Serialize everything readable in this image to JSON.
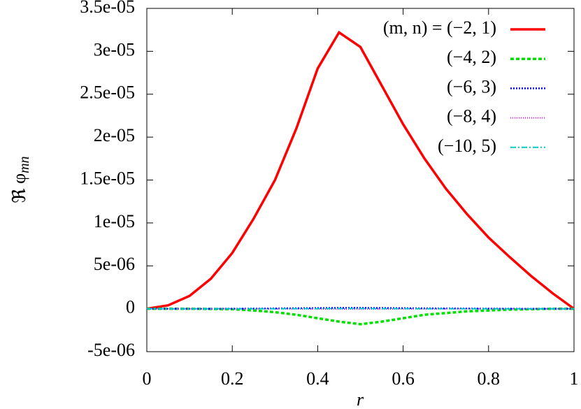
{
  "chart_data": {
    "type": "line",
    "x_label": "r",
    "y_label": {
      "text": "ℜ φ",
      "subscript": "mn"
    },
    "x": [
      0,
      0.05,
      0.1,
      0.15,
      0.2,
      0.25,
      0.3,
      0.35,
      0.4,
      0.45,
      0.5,
      0.55,
      0.6,
      0.65,
      0.7,
      0.75,
      0.8,
      0.85,
      0.9,
      0.95,
      1
    ],
    "series": [
      {
        "name": "(m, n) = (−2, 1)",
        "color": "#ff0000",
        "dash": "none",
        "width": 3.5,
        "values": [
          0,
          4e-07,
          1.5e-06,
          3.5e-06,
          6.5e-06,
          1.05e-05,
          1.5e-05,
          2.1e-05,
          2.8e-05,
          3.22e-05,
          3.05e-05,
          2.6e-05,
          2.15e-05,
          1.75e-05,
          1.4e-05,
          1.1e-05,
          8.3e-06,
          6e-06,
          3.8e-06,
          1.8e-06,
          0
        ]
      },
      {
        "name": "(−4, 2)",
        "color": "#00e000",
        "dash": "5 3",
        "width": 3.5,
        "values": [
          0,
          0,
          0,
          -2e-08,
          -5e-08,
          -2e-07,
          -4e-07,
          -7e-07,
          -1.1e-06,
          -1.5e-06,
          -1.8e-06,
          -1.5e-06,
          -1.1e-06,
          -7e-07,
          -5e-07,
          -3e-07,
          -2e-07,
          -1e-07,
          -5e-08,
          0,
          0
        ]
      },
      {
        "name": "(−6, 3)",
        "color": "#0000ff",
        "dash": "2 2",
        "width": 2.5,
        "values": [
          0,
          0,
          0,
          0,
          1e-08,
          2e-08,
          4e-08,
          6e-08,
          8e-08,
          1e-07,
          1e-07,
          9e-08,
          7e-08,
          5e-08,
          4e-08,
          3e-08,
          2e-08,
          1e-08,
          0,
          0,
          0
        ]
      },
      {
        "name": "(−8, 4)",
        "color": "#ff00ff",
        "dash": "1 2",
        "width": 2,
        "values": [
          0,
          0,
          0,
          0,
          0,
          0,
          -1e-08,
          -2e-08,
          -3e-08,
          -4e-08,
          -4e-08,
          -3e-08,
          -2e-08,
          -2e-08,
          -1e-08,
          0,
          0,
          0,
          0,
          0,
          0
        ]
      },
      {
        "name": "(−10, 5)",
        "color": "#00cccc",
        "dash": "8 3 2 3",
        "width": 2,
        "values": [
          0,
          0,
          0,
          0,
          0,
          0,
          0,
          1e-08,
          1e-08,
          2e-08,
          2e-08,
          1e-08,
          1e-08,
          0,
          0,
          0,
          0,
          0,
          0,
          0,
          0
        ]
      }
    ],
    "xlim": [
      0,
      1
    ],
    "xticks": [
      0,
      0.2,
      0.4,
      0.6,
      0.8,
      1
    ],
    "ylim": [
      -5e-06,
      3.5e-05
    ],
    "yticks": [
      {
        "value": -5e-06,
        "label": "-5e-06"
      },
      0,
      {
        "value": 5e-06,
        "label": "5e-06"
      },
      {
        "value": 1e-05,
        "label": "1e-05"
      },
      {
        "value": 1.5e-05,
        "label": "1.5e-05"
      },
      {
        "value": 2e-05,
        "label": "2e-05"
      },
      {
        "value": 2.5e-05,
        "label": "2.5e-05"
      },
      {
        "value": 3e-05,
        "label": "3e-05"
      },
      {
        "value": 3.5e-05,
        "label": "3.5e-05"
      }
    ],
    "legend": "top-right"
  }
}
